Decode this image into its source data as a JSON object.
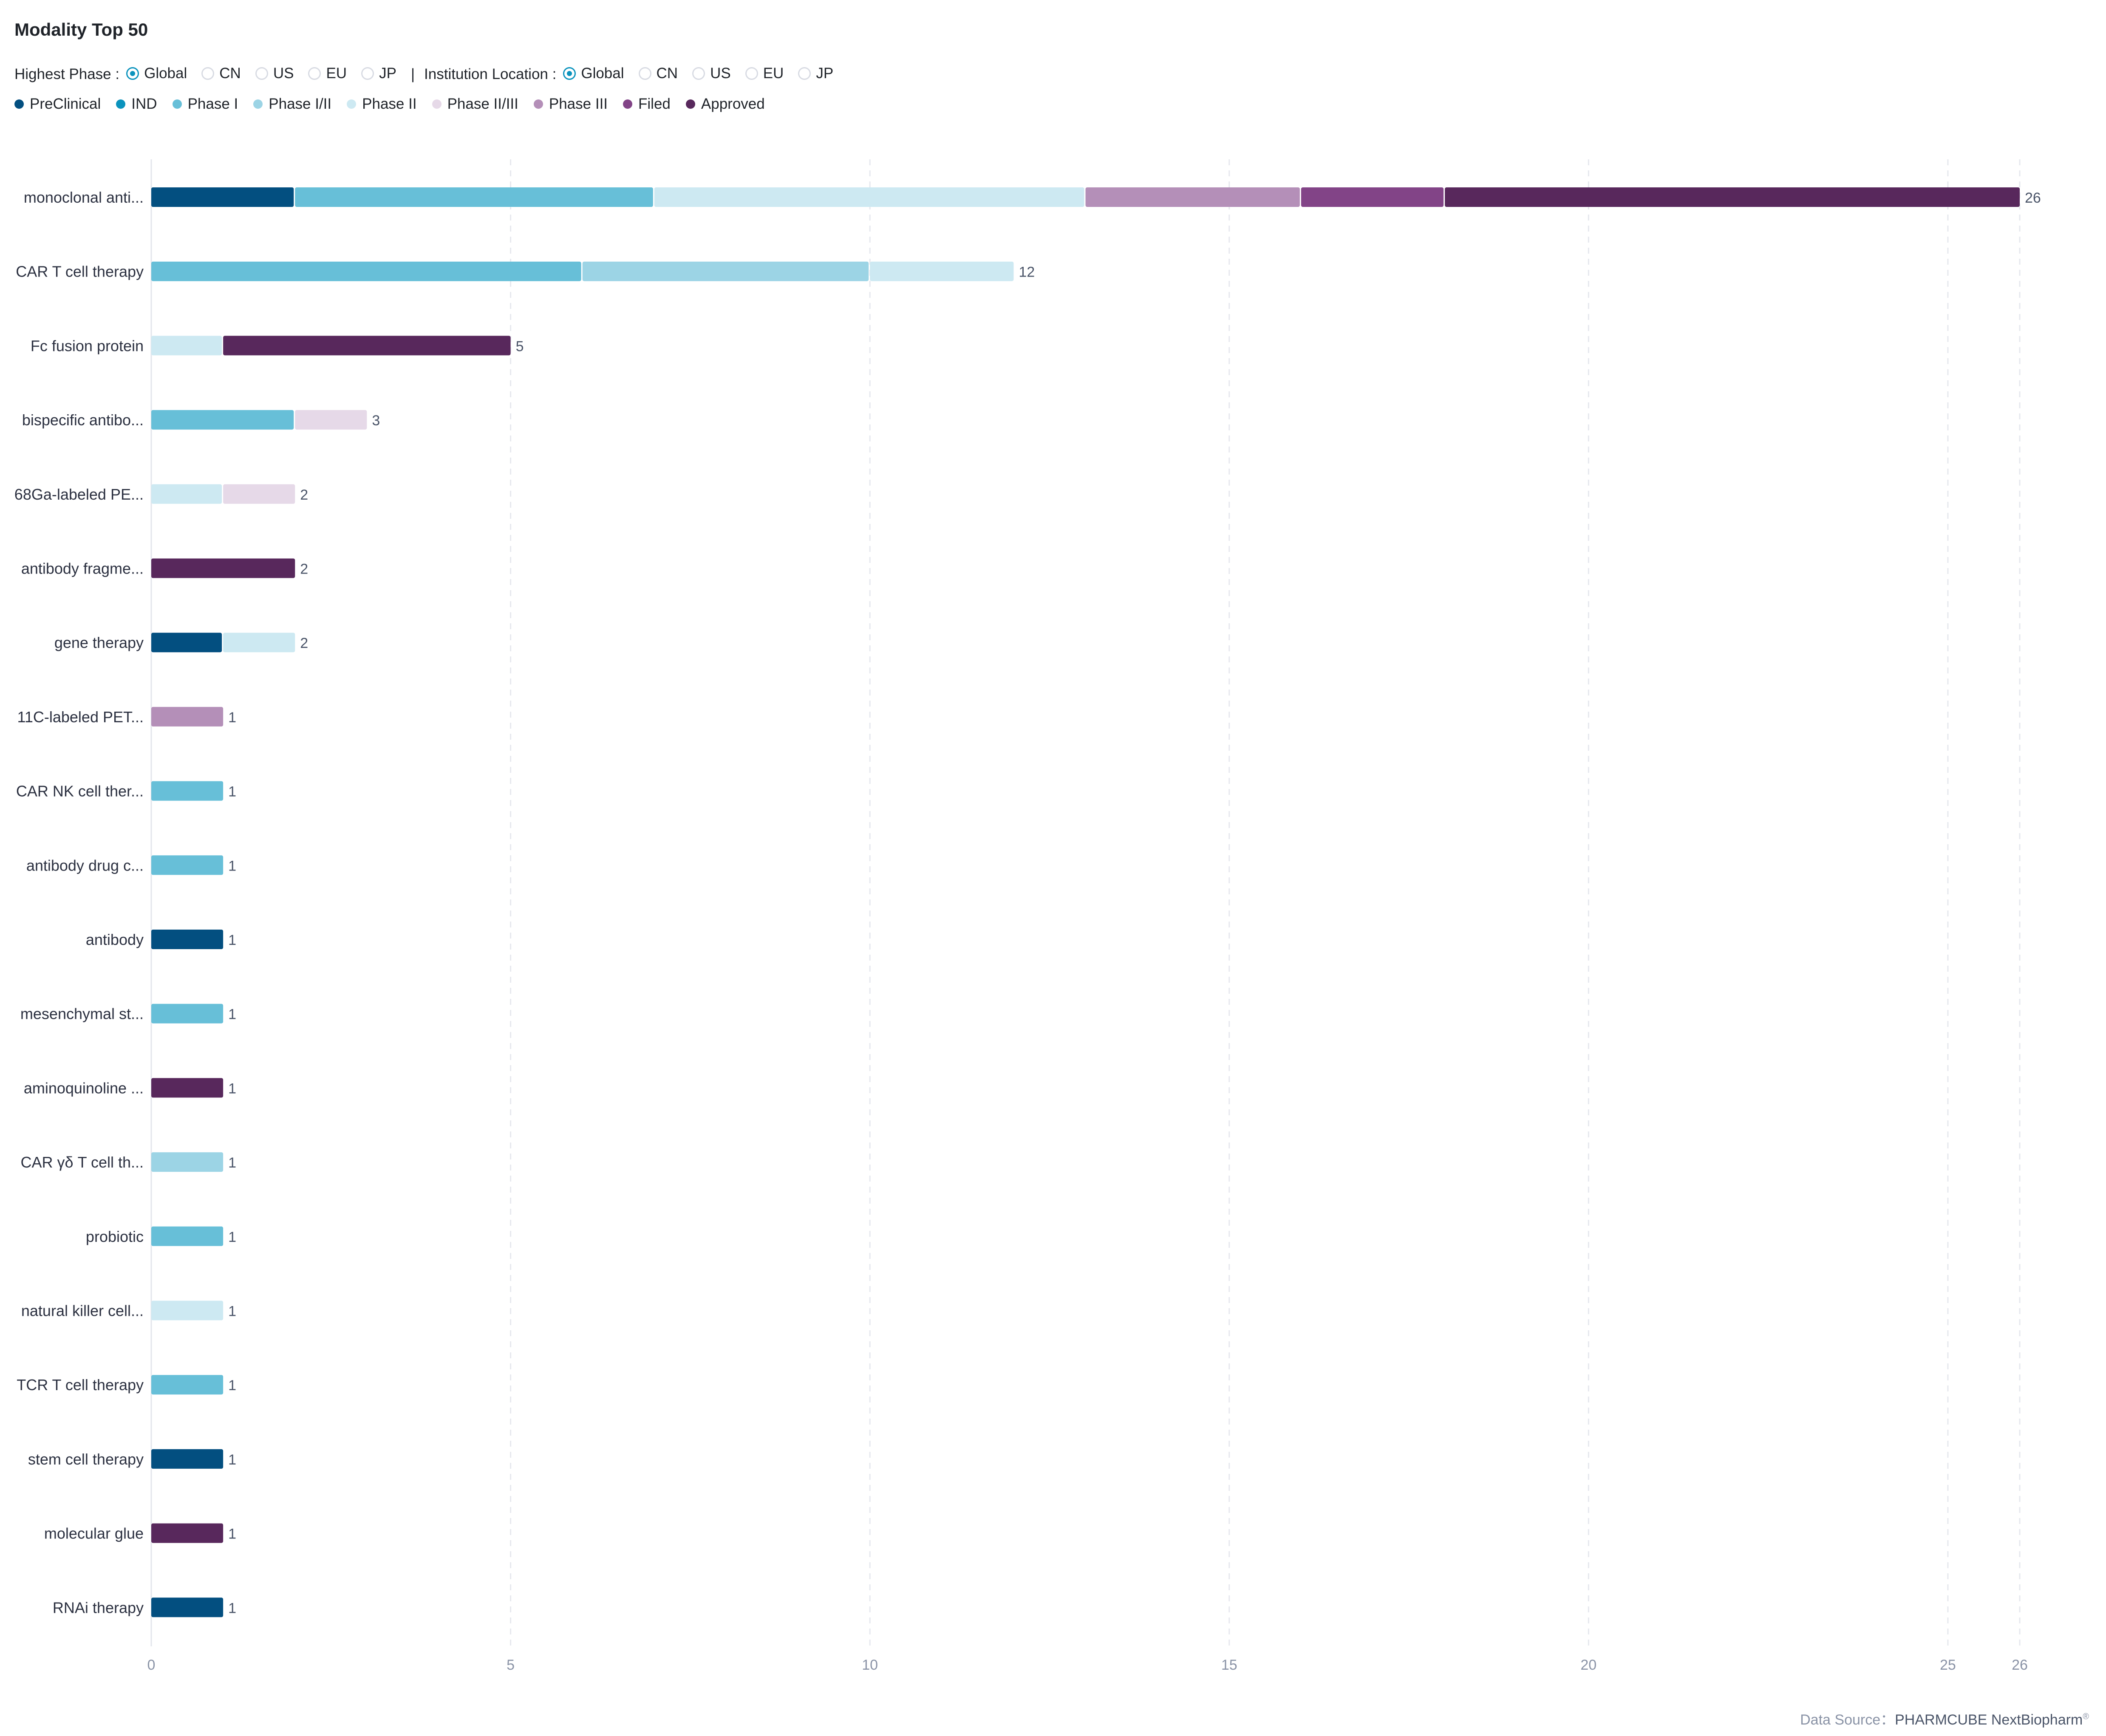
{
  "title": "Modality Top 50",
  "filters": {
    "highest_phase_label": "Highest Phase :",
    "highest_phase_options": [
      "Global",
      "CN",
      "US",
      "EU",
      "JP"
    ],
    "highest_phase_selected": "Global",
    "separator": "|",
    "institution_label": "Institution Location :",
    "institution_options": [
      "Global",
      "CN",
      "US",
      "EU",
      "JP"
    ],
    "institution_selected": "Global"
  },
  "footer": {
    "label": "Data Source：",
    "source": "PHARMCUBE NextBiopharm",
    "mark": "®"
  },
  "chart_data": {
    "type": "bar",
    "orientation": "horizontal",
    "stacked": true,
    "title": "Modality Top 50",
    "xlabel": "",
    "ylabel": "",
    "xlim": [
      0,
      26
    ],
    "x_ticks": [
      0,
      5,
      10,
      15,
      20,
      25,
      26
    ],
    "grid": true,
    "legend_position": "top-left",
    "categories": [
      "monoclonal anti...",
      "CAR T cell therapy",
      "Fc fusion protein",
      "bispecific antibo...",
      "68Ga-labeled PE...",
      "antibody fragme...",
      "gene therapy",
      "11C-labeled PET...",
      "CAR NK cell ther...",
      "antibody drug c...",
      "antibody",
      "mesenchymal st...",
      "aminoquinoline ...",
      "CAR γδ T cell th...",
      "probiotic",
      "natural killer cell...",
      "TCR T cell therapy",
      "stem cell therapy",
      "molecular glue",
      "RNAi therapy"
    ],
    "totals": [
      26,
      12,
      5,
      3,
      2,
      2,
      2,
      1,
      1,
      1,
      1,
      1,
      1,
      1,
      1,
      1,
      1,
      1,
      1,
      1
    ],
    "series": [
      {
        "name": "PreClinical",
        "color": "#034f80",
        "values": [
          2,
          0,
          0,
          0,
          0,
          0,
          1,
          0,
          0,
          0,
          1,
          0,
          0,
          0,
          0,
          0,
          0,
          1,
          0,
          1
        ]
      },
      {
        "name": "IND",
        "color": "#0b93bd",
        "values": [
          0,
          0,
          0,
          0,
          0,
          0,
          0,
          0,
          0,
          0,
          0,
          0,
          0,
          0,
          0,
          0,
          0,
          0,
          0,
          0
        ]
      },
      {
        "name": "Phase I",
        "color": "#67bfd8",
        "values": [
          5,
          6,
          0,
          2,
          0,
          0,
          0,
          0,
          1,
          1,
          0,
          1,
          0,
          0,
          1,
          0,
          1,
          0,
          0,
          0
        ]
      },
      {
        "name": "Phase I/II",
        "color": "#9cd4e5",
        "values": [
          0,
          4,
          0,
          0,
          0,
          0,
          0,
          0,
          0,
          0,
          0,
          0,
          0,
          1,
          0,
          0,
          0,
          0,
          0,
          0
        ]
      },
      {
        "name": "Phase II",
        "color": "#cde9f2",
        "values": [
          6,
          2,
          1,
          0,
          1,
          0,
          1,
          0,
          0,
          0,
          0,
          0,
          0,
          0,
          0,
          1,
          0,
          0,
          0,
          0
        ]
      },
      {
        "name": "Phase II/III",
        "color": "#e6d9e8",
        "values": [
          0,
          0,
          0,
          1,
          1,
          0,
          0,
          0,
          0,
          0,
          0,
          0,
          0,
          0,
          0,
          0,
          0,
          0,
          0,
          0
        ]
      },
      {
        "name": "Phase III",
        "color": "#b48fb8",
        "values": [
          3,
          0,
          0,
          0,
          0,
          0,
          0,
          1,
          0,
          0,
          0,
          0,
          0,
          0,
          0,
          0,
          0,
          0,
          0,
          0
        ]
      },
      {
        "name": "Filed",
        "color": "#824487",
        "values": [
          2,
          0,
          0,
          0,
          0,
          0,
          0,
          0,
          0,
          0,
          0,
          0,
          0,
          0,
          0,
          0,
          0,
          0,
          0,
          0
        ]
      },
      {
        "name": "Approved",
        "color": "#58285c",
        "values": [
          8,
          0,
          4,
          0,
          0,
          2,
          0,
          0,
          0,
          0,
          0,
          0,
          1,
          0,
          0,
          0,
          0,
          0,
          1,
          0
        ]
      }
    ]
  }
}
